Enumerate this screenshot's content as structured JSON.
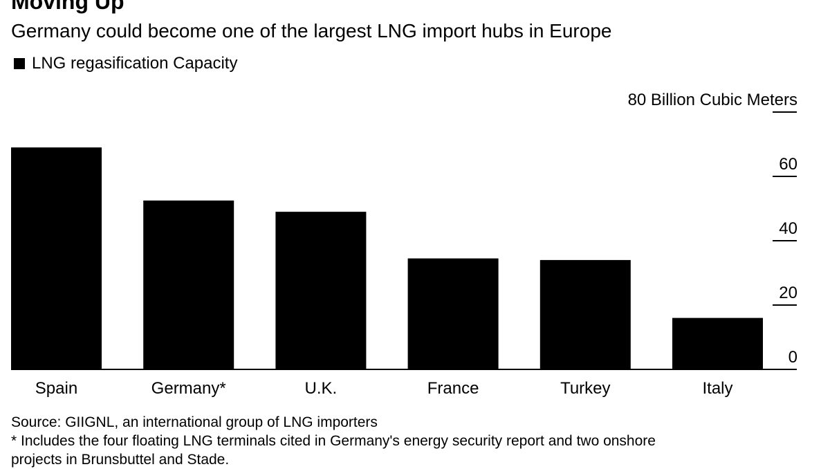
{
  "chart_data": {
    "type": "bar",
    "title": "Moving Up",
    "subtitle": "Germany could become one of the largest LNG import hubs in Europe",
    "legend": "LNG regasification Capacity",
    "categories": [
      "Spain",
      "Germany*",
      "U.K.",
      "France",
      "Turkey",
      "Italy"
    ],
    "values": [
      69,
      52.5,
      49,
      34.5,
      34,
      16
    ],
    "ylim": [
      0,
      80
    ],
    "yticks": [
      "0",
      "20",
      "40",
      "60",
      "80 Billion Cubic Meters"
    ],
    "ytick_values": [
      0,
      20,
      40,
      60,
      80
    ],
    "xlabel": "",
    "ylabel": "",
    "bar_color": "#000000"
  },
  "source": "Source: GIIGNL, an international group of LNG importers",
  "footnote": "* Includes the four floating LNG terminals cited in Germany's energy security report and two onshore projects in Brunsbuttel and Stade."
}
